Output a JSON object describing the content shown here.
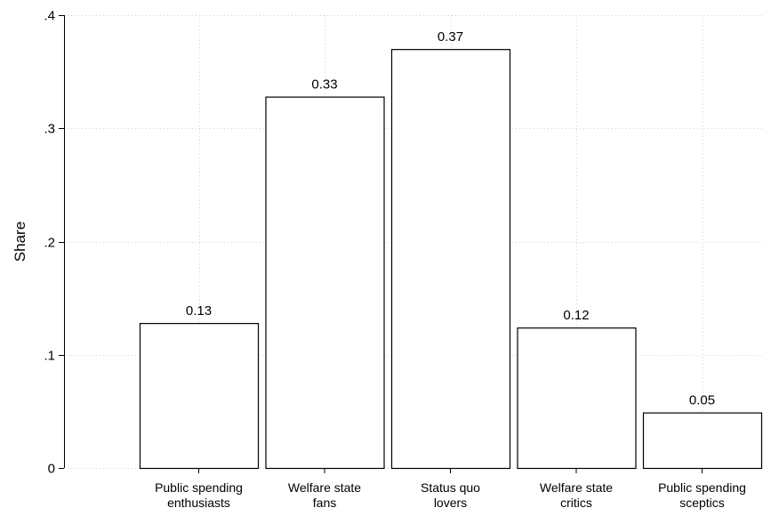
{
  "chart_data": {
    "type": "bar",
    "title": "",
    "xlabel": "",
    "ylabel": "Share",
    "ylim": [
      0,
      0.4
    ],
    "yticks": [
      {
        "value": 0,
        "label": "0"
      },
      {
        "value": 0.1,
        "label": ".1"
      },
      {
        "value": 0.2,
        "label": ".2"
      },
      {
        "value": 0.3,
        "label": ".3"
      },
      {
        "value": 0.4,
        "label": ".4"
      }
    ],
    "grid": true,
    "legend": "none",
    "categories": [
      [
        "Public spending",
        "enthusiasts"
      ],
      [
        "Welfare state",
        "fans"
      ],
      [
        "Status quo",
        "lovers"
      ],
      [
        "Welfare state",
        "critics"
      ],
      [
        "Public spending",
        "sceptics"
      ]
    ],
    "values": [
      0.128,
      0.328,
      0.37,
      0.124,
      0.049
    ],
    "data_labels": [
      "0.13",
      "0.33",
      "0.37",
      "0.12",
      "0.05"
    ],
    "bar_fill": "#ffffff",
    "bar_stroke": "#000000",
    "grid_color": "#d4d4d4"
  }
}
